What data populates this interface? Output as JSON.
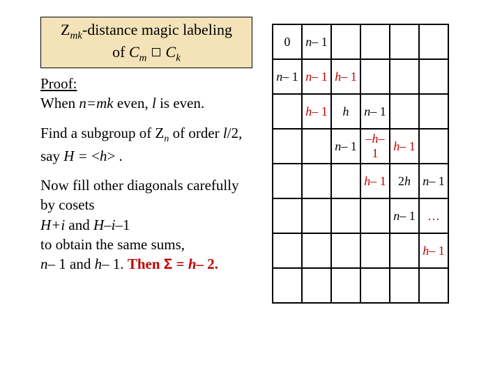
{
  "title": {
    "line1_pre": "Z",
    "line1_sub": "mk",
    "line1_post": "-distance magic labeling",
    "line2_pre": "of ",
    "line2_c1": "C",
    "line2_c1sub": "m",
    "line2_c2": "C",
    "line2_c2sub": "k"
  },
  "proof": {
    "heading": "Proof:",
    "p1_a": "When ",
    "p1_b": "n=mk",
    "p1_c": " even, ",
    "p1_d": "l",
    "p1_e": " is even.",
    "p2_a": "Find a subgroup of  Z",
    "p2_sub": "n",
    "p2_b": " of order ",
    "p2_c": "l",
    "p2_d": "/2, say ",
    "p2_e": "H = ",
    "p2_f": "<",
    "p2_g": "h",
    "p2_h": "> .",
    "p3_a": "Now fill other diagonals carefully by cosets",
    "p3_b": "H+i",
    "p3_c": " and  ",
    "p3_d": "H–i–",
    "p3_e": "1",
    "p3_f": "to obtain the same sums,",
    "p3_g": "n",
    "p3_h": "– 1 and ",
    "p3_i": "h",
    "p3_j": "– 1. ",
    "p3_k": "Then ",
    "p3_sigma": "Σ",
    "p3_eq": " = ",
    "p3_l": "h",
    "p3_m": "– 2."
  },
  "grid": {
    "r1c1": "0",
    "r1c2_n": "n",
    "r1c2_t": "– 1",
    "r2c1_n": "n",
    "r2c1_t": "– 1",
    "r2c2_n": "n",
    "r2c2_t": "– 1",
    "r2c3_h": "h",
    "r2c3_t": "– 1",
    "r3c2_h": "h",
    "r3c2_t": "– 1",
    "r3c3_h": "h",
    "r3c4_n": "n",
    "r3c4_t": "– 1",
    "r4c3_n": "n",
    "r4c3_t": "– 1",
    "r4c4_m": "–",
    "r4c4_h": "h",
    "r4c4_t": "– 1",
    "r4c5_h": "h",
    "r4c5_t": "– 1",
    "r5c4_h": "h",
    "r5c4_t": "– 1",
    "r5c5_2h": "2",
    "r5c5_h": "h",
    "r5c6_n": "n",
    "r5c6_t": "– 1",
    "r6c5_n": "n",
    "r6c5_t": "– 1",
    "r6c6": "…",
    "r7c6_h": "h",
    "r7c6_t": "– 1"
  }
}
